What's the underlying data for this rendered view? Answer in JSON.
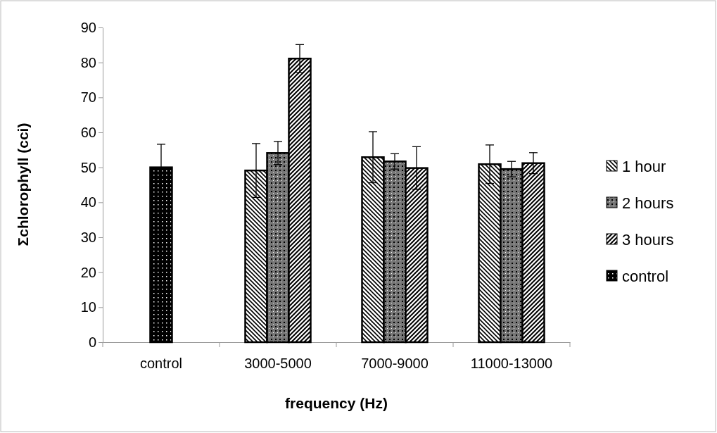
{
  "chart_data": {
    "type": "bar",
    "xlabel": "frequency (Hz)",
    "ylabel": "Σchlorophyll (cci)",
    "categories": [
      "control",
      "3000-5000",
      "7000-9000",
      "11000-13000"
    ],
    "series": [
      {
        "name": "1 hour",
        "color": "#000000",
        "values": [
          null,
          49.1,
          52.9,
          50.9
        ],
        "errors": [
          null,
          7.7,
          7.3,
          5.5
        ]
      },
      {
        "name": "2 hours",
        "color": "#000000",
        "values": [
          null,
          54.1,
          51.7,
          49.5
        ],
        "errors": [
          null,
          3.3,
          2.2,
          2.2
        ]
      },
      {
        "name": "3 hours",
        "color": "#000000",
        "values": [
          null,
          81.1,
          49.8,
          51.2
        ],
        "errors": [
          null,
          4,
          6.1,
          3
        ]
      },
      {
        "name": "control",
        "color": "#000000",
        "values": [
          50,
          null,
          null,
          null
        ],
        "errors": [
          6.6,
          null,
          null,
          null
        ]
      }
    ],
    "ylim": [
      0,
      90
    ],
    "yticks": [
      0,
      10,
      20,
      30,
      40,
      50,
      60,
      70,
      80,
      90
    ],
    "grid": false,
    "legend": "right"
  }
}
